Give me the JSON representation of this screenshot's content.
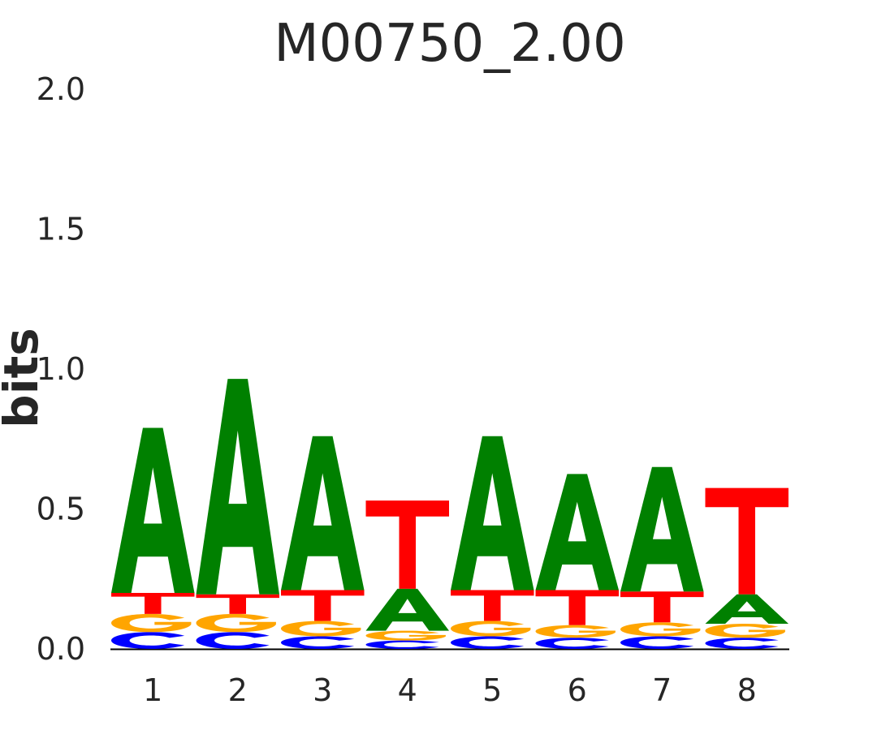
{
  "chart_data": {
    "type": "sequence-logo",
    "title": "M00750_2.00",
    "ylabel": "bits",
    "ylim": [
      0,
      2.0
    ],
    "yticks": [
      "0.0",
      "0.5",
      "1.0",
      "1.5",
      "2.0"
    ],
    "positions": [
      "1",
      "2",
      "3",
      "4",
      "5",
      "6",
      "7",
      "8"
    ],
    "colors": {
      "A": "#008000",
      "C": "#0000ff",
      "G": "#ffa500",
      "T": "#ff0000"
    },
    "stacks": [
      [
        {
          "base": "C",
          "bits": 0.06
        },
        {
          "base": "G",
          "bits": 0.065
        },
        {
          "base": "T",
          "bits": 0.075
        },
        {
          "base": "A",
          "bits": 0.59
        }
      ],
      [
        {
          "base": "C",
          "bits": 0.06
        },
        {
          "base": "G",
          "bits": 0.065
        },
        {
          "base": "T",
          "bits": 0.07
        },
        {
          "base": "A",
          "bits": 0.77
        }
      ],
      [
        {
          "base": "C",
          "bits": 0.045
        },
        {
          "base": "G",
          "bits": 0.055
        },
        {
          "base": "T",
          "bits": 0.11
        },
        {
          "base": "A",
          "bits": 0.55
        }
      ],
      [
        {
          "base": "C",
          "bits": 0.03
        },
        {
          "base": "G",
          "bits": 0.035
        },
        {
          "base": "A",
          "bits": 0.15
        },
        {
          "base": "T",
          "bits": 0.315
        }
      ],
      [
        {
          "base": "C",
          "bits": 0.045
        },
        {
          "base": "G",
          "bits": 0.055
        },
        {
          "base": "T",
          "bits": 0.11
        },
        {
          "base": "A",
          "bits": 0.55
        }
      ],
      [
        {
          "base": "C",
          "bits": 0.04
        },
        {
          "base": "G",
          "bits": 0.045
        },
        {
          "base": "T",
          "bits": 0.125
        },
        {
          "base": "A",
          "bits": 0.415
        }
      ],
      [
        {
          "base": "C",
          "bits": 0.045
        },
        {
          "base": "G",
          "bits": 0.05
        },
        {
          "base": "T",
          "bits": 0.11
        },
        {
          "base": "A",
          "bits": 0.445
        }
      ],
      [
        {
          "base": "C",
          "bits": 0.04
        },
        {
          "base": "G",
          "bits": 0.05
        },
        {
          "base": "A",
          "bits": 0.105
        },
        {
          "base": "T",
          "bits": 0.38
        }
      ]
    ]
  }
}
